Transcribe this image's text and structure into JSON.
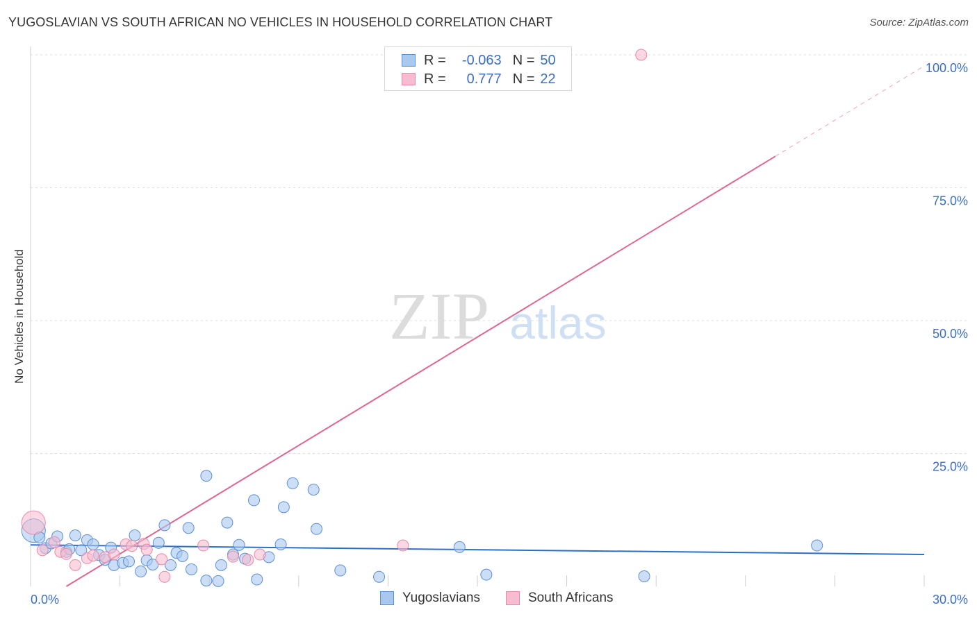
{
  "header": {
    "title": "YUGOSLAVIAN VS SOUTH AFRICAN NO VEHICLES IN HOUSEHOLD CORRELATION CHART",
    "source": "Source: ZipAtlas.com"
  },
  "colors": {
    "blue_fill": "#a8c8ee",
    "blue_stroke": "#5b8fd4",
    "blue_line": "#2a6fc9",
    "pink_fill": "#f7bcd0",
    "pink_stroke": "#e58aa8",
    "pink_line": "#e0668f",
    "axis_text": "#3a6fc4",
    "grid": "#dddddd"
  },
  "legend": {
    "rows": [
      {
        "r_label": "R =",
        "r_value": "-0.063",
        "n_label": "N =",
        "n_value": "50"
      },
      {
        "r_label": "R =",
        "r_value": "0.777",
        "n_label": "N =",
        "n_value": "22"
      }
    ]
  },
  "bottom_legend": [
    "Yugoslavians",
    "South Africans"
  ],
  "watermark": {
    "zip": "ZIP",
    "atlas": "atlas"
  },
  "chart_data": {
    "type": "scatter",
    "title": "YUGOSLAVIAN VS SOUTH AFRICAN NO VEHICLES IN HOUSEHOLD CORRELATION CHART",
    "xlabel": "",
    "ylabel": "No Vehicles in Household",
    "xlim": [
      0,
      30
    ],
    "ylim": [
      0,
      100
    ],
    "x_tick_labels": [
      "0.0%",
      "30.0%"
    ],
    "y_ticks": [
      25,
      50,
      75,
      100
    ],
    "y_tick_labels": [
      "25.0%",
      "50.0%",
      "75.0%",
      "100.0%"
    ],
    "grid": true,
    "series": [
      {
        "name": "Yugoslavians",
        "r": -0.063,
        "n": 50,
        "trend": {
          "x": [
            0,
            30
          ],
          "y": [
            7.8,
            6.0
          ]
        },
        "points": [
          {
            "x": 0.1,
            "y": 10.5,
            "big": true
          },
          {
            "x": 0.3,
            "y": 9.2
          },
          {
            "x": 0.5,
            "y": 7.2
          },
          {
            "x": 0.7,
            "y": 8.1
          },
          {
            "x": 0.9,
            "y": 9.4
          },
          {
            "x": 1.2,
            "y": 6.5
          },
          {
            "x": 1.3,
            "y": 7.0
          },
          {
            "x": 1.5,
            "y": 9.6
          },
          {
            "x": 1.7,
            "y": 6.8
          },
          {
            "x": 1.9,
            "y": 8.7
          },
          {
            "x": 2.1,
            "y": 7.9
          },
          {
            "x": 2.3,
            "y": 5.9
          },
          {
            "x": 2.5,
            "y": 5.0
          },
          {
            "x": 2.7,
            "y": 7.3
          },
          {
            "x": 2.8,
            "y": 4.0
          },
          {
            "x": 3.1,
            "y": 4.4
          },
          {
            "x": 3.3,
            "y": 4.7
          },
          {
            "x": 3.5,
            "y": 9.6
          },
          {
            "x": 3.7,
            "y": 2.8
          },
          {
            "x": 3.9,
            "y": 4.9
          },
          {
            "x": 4.1,
            "y": 4.1
          },
          {
            "x": 4.3,
            "y": 8.2
          },
          {
            "x": 4.5,
            "y": 11.5
          },
          {
            "x": 4.7,
            "y": 4.0
          },
          {
            "x": 4.9,
            "y": 6.3
          },
          {
            "x": 5.1,
            "y": 5.7
          },
          {
            "x": 5.3,
            "y": 11.0
          },
          {
            "x": 5.4,
            "y": 3.2
          },
          {
            "x": 5.9,
            "y": 20.8
          },
          {
            "x": 5.9,
            "y": 1.1
          },
          {
            "x": 6.3,
            "y": 1.0
          },
          {
            "x": 6.4,
            "y": 4.0
          },
          {
            "x": 6.6,
            "y": 12.0
          },
          {
            "x": 6.8,
            "y": 6.0
          },
          {
            "x": 7.0,
            "y": 7.8
          },
          {
            "x": 7.2,
            "y": 5.2
          },
          {
            "x": 7.5,
            "y": 16.2
          },
          {
            "x": 7.6,
            "y": 1.3
          },
          {
            "x": 8.0,
            "y": 5.5
          },
          {
            "x": 8.4,
            "y": 7.9
          },
          {
            "x": 8.5,
            "y": 14.9
          },
          {
            "x": 8.8,
            "y": 19.4
          },
          {
            "x": 9.5,
            "y": 18.2
          },
          {
            "x": 9.6,
            "y": 10.8
          },
          {
            "x": 10.4,
            "y": 3.0
          },
          {
            "x": 11.7,
            "y": 1.8
          },
          {
            "x": 14.4,
            "y": 7.4
          },
          {
            "x": 15.3,
            "y": 2.2
          },
          {
            "x": 20.6,
            "y": 1.9
          },
          {
            "x": 26.4,
            "y": 7.7
          }
        ]
      },
      {
        "name": "South Africans",
        "r": 0.777,
        "n": 22,
        "trend": {
          "x": [
            1.2,
            25.0
          ],
          "y": [
            0.0,
            80.9
          ]
        },
        "trend_dashed": {
          "x": [
            25.0,
            30.0
          ],
          "y": [
            80.9,
            97.9
          ]
        },
        "points": [
          {
            "x": 0.1,
            "y": 12.0,
            "big": true
          },
          {
            "x": 0.4,
            "y": 6.8
          },
          {
            "x": 0.8,
            "y": 8.3
          },
          {
            "x": 1.0,
            "y": 6.5
          },
          {
            "x": 1.2,
            "y": 6.1
          },
          {
            "x": 1.5,
            "y": 4.0
          },
          {
            "x": 1.9,
            "y": 5.3
          },
          {
            "x": 2.1,
            "y": 5.8
          },
          {
            "x": 2.5,
            "y": 5.5
          },
          {
            "x": 2.8,
            "y": 6.0
          },
          {
            "x": 3.2,
            "y": 7.9
          },
          {
            "x": 3.4,
            "y": 7.6
          },
          {
            "x": 3.8,
            "y": 8.0
          },
          {
            "x": 3.9,
            "y": 6.9
          },
          {
            "x": 4.4,
            "y": 5.1
          },
          {
            "x": 4.5,
            "y": 1.8
          },
          {
            "x": 5.8,
            "y": 7.7
          },
          {
            "x": 6.8,
            "y": 5.6
          },
          {
            "x": 7.3,
            "y": 5.0
          },
          {
            "x": 7.7,
            "y": 6.0
          },
          {
            "x": 12.5,
            "y": 7.7
          },
          {
            "x": 20.5,
            "y": 100.0
          }
        ]
      }
    ]
  }
}
